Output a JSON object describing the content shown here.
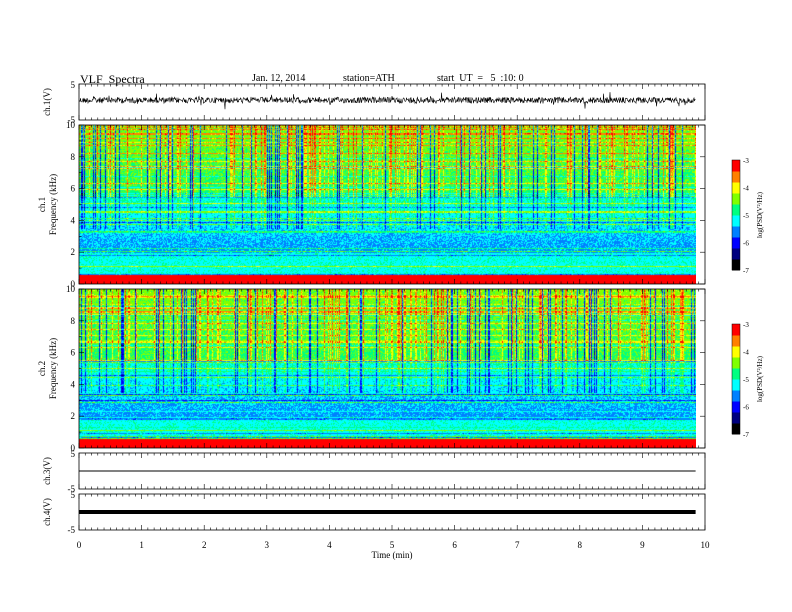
{
  "header": {
    "title": "VLF  Spectra",
    "date": "Jan. 12, 2014",
    "station": "station=ATH",
    "start_ut": "start  UT  =   5  :10: 0"
  },
  "colors": {
    "colormap": [
      "#000000",
      "#00007f",
      "#0000ff",
      "#0080ff",
      "#00ffff",
      "#00ff80",
      "#80ff00",
      "#ffff00",
      "#ff8000",
      "#ff0000",
      "#ffffff"
    ]
  },
  "chart_data": [
    {
      "type": "line",
      "panel": "ch1-waveform",
      "ylabel": "ch.1(V)",
      "ytick_labels": [
        "5",
        "-5"
      ],
      "ylim": [
        -5,
        5
      ],
      "approx_level": 0.5
    },
    {
      "type": "heatmap",
      "panel": "ch1-spectrogram",
      "ylabel": "ch.1\nFrequency  (kHz)",
      "ylim": [
        0,
        10
      ],
      "ytick_labels": [
        "0",
        "2",
        "4",
        "6",
        "8",
        "10"
      ],
      "colorbar": {
        "label": "log(PSD(V²/Hz)",
        "range": [
          -7,
          -3
        ],
        "tick_labels": [
          "-3",
          "-4",
          "-5",
          "-6",
          "-7"
        ]
      }
    },
    {
      "type": "heatmap",
      "panel": "ch2-spectrogram",
      "ylabel": "ch.2\nFrequency  (kHz)",
      "ylim": [
        0,
        10
      ],
      "ytick_labels": [
        "0",
        "2",
        "4",
        "6",
        "8",
        "10"
      ],
      "colorbar": {
        "label": "log(PSD(V²/Hz)",
        "range": [
          -7,
          -3
        ],
        "tick_labels": [
          "-3",
          "-4",
          "-5",
          "-6",
          "-7"
        ]
      }
    },
    {
      "type": "line",
      "panel": "ch3-waveform",
      "ylabel": "ch.3(V)",
      "ytick_labels": [
        "5",
        "-5"
      ],
      "ylim": [
        -5,
        5
      ],
      "approx_level": 0
    },
    {
      "type": "line",
      "panel": "ch4-waveform",
      "ylabel": "ch.4(V)",
      "ytick_labels": [
        "5",
        "-5"
      ],
      "ylim": [
        -5,
        5
      ],
      "approx_level": 0
    }
  ],
  "x_axis": {
    "xlabel": "Time  (min)",
    "xlim": [
      0,
      10
    ],
    "data_end": 9.85,
    "tick_labels": [
      "0",
      "1",
      "2",
      "3",
      "4",
      "5",
      "6",
      "7",
      "8",
      "9",
      "10"
    ]
  }
}
